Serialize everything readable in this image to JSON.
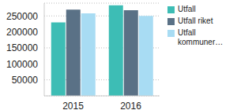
{
  "chart_data": {
    "type": "bar",
    "categories": [
      "2015",
      "2016"
    ],
    "series": [
      {
        "name": "Utfall",
        "color": "#3dbdb5",
        "values": [
          230000,
          283000
        ]
      },
      {
        "name": "Utfall riket",
        "color": "#5a7186",
        "values": [
          270000,
          268000
        ]
      },
      {
        "name": "Utfall kommuner…",
        "color": "#a8dcf3",
        "values": [
          258000,
          250000
        ]
      }
    ],
    "ylim": [
      0,
      290000
    ],
    "yticks": [
      50000,
      100000,
      150000,
      200000,
      250000
    ],
    "grid": true,
    "legend": "right"
  }
}
